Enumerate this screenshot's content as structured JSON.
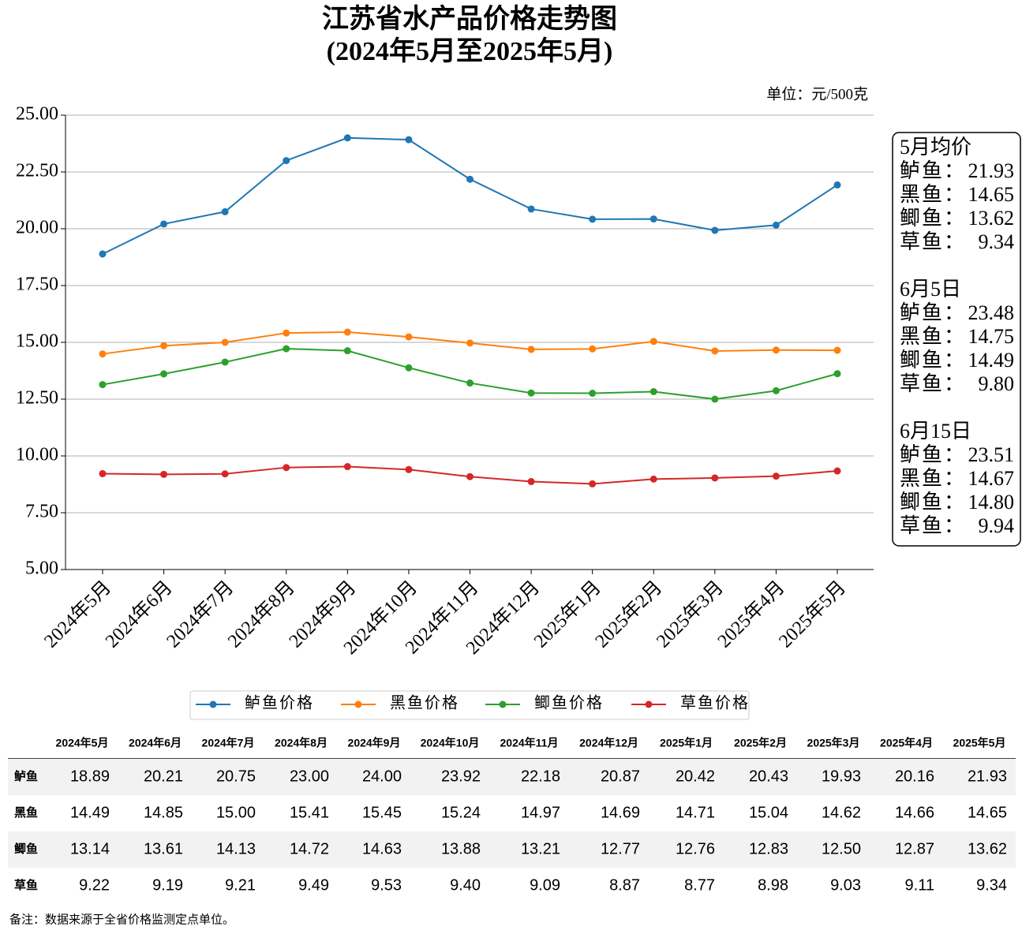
{
  "chart_data": {
    "type": "line",
    "title": "江苏省水产品价格走势图",
    "subtitle": "(2024年5月至2025年5月)",
    "unit": "单位：元/500克",
    "categories": [
      "2024年5月",
      "2024年6月",
      "2024年7月",
      "2024年8月",
      "2024年9月",
      "2024年10月",
      "2024年11月",
      "2024年12月",
      "2025年1月",
      "2025年2月",
      "2025年3月",
      "2025年4月",
      "2025年5月"
    ],
    "series": [
      {
        "name": "鲈鱼价格",
        "color": "#1f77b4",
        "values": [
          18.89,
          20.21,
          20.75,
          23.0,
          24.0,
          23.92,
          22.18,
          20.87,
          20.42,
          20.43,
          19.93,
          20.16,
          21.93
        ]
      },
      {
        "name": "黑鱼价格",
        "color": "#ff7f0e",
        "values": [
          14.49,
          14.85,
          15.0,
          15.41,
          15.45,
          15.24,
          14.97,
          14.69,
          14.71,
          15.04,
          14.62,
          14.66,
          14.65
        ]
      },
      {
        "name": "鲫鱼价格",
        "color": "#2ca02c",
        "values": [
          13.14,
          13.61,
          14.13,
          14.72,
          14.63,
          13.88,
          13.21,
          12.77,
          12.76,
          12.83,
          12.5,
          12.87,
          13.62
        ]
      },
      {
        "name": "草鱼价格",
        "color": "#d62728",
        "values": [
          9.22,
          9.19,
          9.21,
          9.49,
          9.53,
          9.4,
          9.09,
          8.87,
          8.77,
          8.98,
          9.03,
          9.11,
          9.34
        ]
      }
    ],
    "ylim": [
      5,
      25
    ],
    "yticks": [
      {
        "value": 5,
        "label": "5.00"
      },
      {
        "value": 7.5,
        "label": "7.50"
      },
      {
        "value": 10,
        "label": "10.00"
      },
      {
        "value": 12.5,
        "label": "12.50"
      },
      {
        "value": 15,
        "label": "15.00"
      },
      {
        "value": 17.5,
        "label": "17.50"
      },
      {
        "value": 20,
        "label": "20.00"
      },
      {
        "value": 22.5,
        "label": "22.50"
      },
      {
        "value": 25,
        "label": "25.00"
      }
    ],
    "grid": true,
    "legend": "bottom",
    "annotations": [
      {
        "title": "5月均价",
        "items": [
          {
            "label": "鲈鱼：",
            "value": "21.93"
          },
          {
            "label": "黑鱼：",
            "value": "14.65"
          },
          {
            "label": "鲫鱼：",
            "value": "13.62"
          },
          {
            "label": "草鱼：",
            "value": "9.34"
          }
        ]
      },
      {
        "title": "6月5日",
        "items": [
          {
            "label": "鲈鱼：",
            "value": "23.48"
          },
          {
            "label": "黑鱼：",
            "value": "14.75"
          },
          {
            "label": "鲫鱼：",
            "value": "14.49"
          },
          {
            "label": "草鱼：",
            "value": "9.80"
          }
        ]
      },
      {
        "title": "6月15日",
        "items": [
          {
            "label": "鲈鱼：",
            "value": "23.51"
          },
          {
            "label": "黑鱼：",
            "value": "14.67"
          },
          {
            "label": "鲫鱼：",
            "value": "14.80"
          },
          {
            "label": "草鱼：",
            "value": "9.94"
          }
        ]
      }
    ]
  },
  "table": {
    "rows": [
      {
        "label": "鲈鱼",
        "cells": [
          "18.89",
          "20.21",
          "20.75",
          "23.00",
          "24.00",
          "23.92",
          "22.18",
          "20.87",
          "20.42",
          "20.43",
          "19.93",
          "20.16",
          "21.93"
        ]
      },
      {
        "label": "黑鱼",
        "cells": [
          "14.49",
          "14.85",
          "15.00",
          "15.41",
          "15.45",
          "15.24",
          "14.97",
          "14.69",
          "14.71",
          "15.04",
          "14.62",
          "14.66",
          "14.65"
        ]
      },
      {
        "label": "鲫鱼",
        "cells": [
          "13.14",
          "13.61",
          "14.13",
          "14.72",
          "14.63",
          "13.88",
          "13.21",
          "12.77",
          "12.76",
          "12.83",
          "12.50",
          "12.87",
          "13.62"
        ]
      },
      {
        "label": "草鱼",
        "cells": [
          "9.22",
          "9.19",
          "9.21",
          "9.49",
          "9.53",
          "9.40",
          "9.09",
          "8.87",
          "8.77",
          "8.98",
          "9.03",
          "9.11",
          "9.34"
        ]
      }
    ]
  },
  "footnote": "备注：数据来源于全省价格监测定点单位。"
}
